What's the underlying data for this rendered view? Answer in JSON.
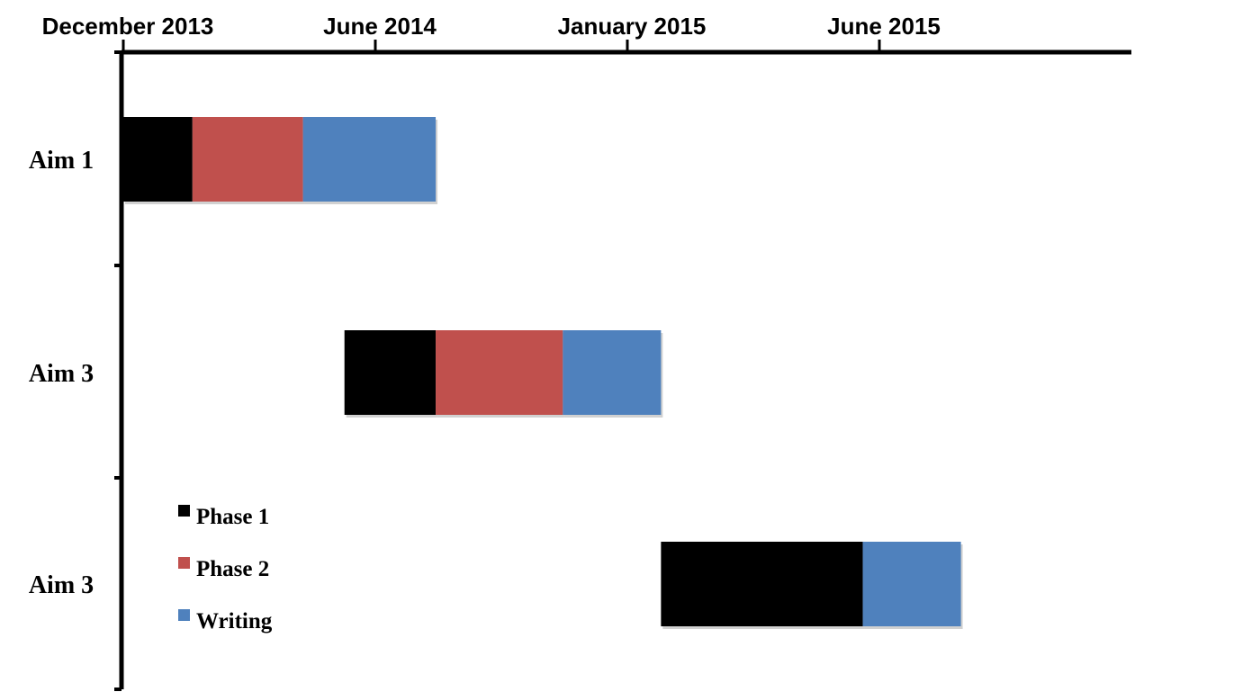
{
  "chart_data": {
    "type": "gantt",
    "title": "",
    "time_axis": {
      "position": "top",
      "ticks": [
        {
          "date": "2013-12",
          "label": "December 2013"
        },
        {
          "date": "2014-06",
          "label": "June 2014"
        },
        {
          "date": "2015-01",
          "label": "January 2015"
        },
        {
          "date": "2015-06",
          "label": "June 2015"
        }
      ]
    },
    "rows": [
      "Aim 1",
      "Aim 3",
      "Aim 3"
    ],
    "series": [
      {
        "name": "Phase 1",
        "color": "#000000"
      },
      {
        "name": "Phase 2",
        "color": "#c0504d"
      },
      {
        "name": "Writing",
        "color": "#4f81bd"
      }
    ],
    "tasks": [
      {
        "row": 0,
        "series": "Phase 1",
        "start": "2013-12-01",
        "end": "2014-01-20"
      },
      {
        "row": 0,
        "series": "Phase 2",
        "start": "2014-01-20",
        "end": "2014-04-10"
      },
      {
        "row": 0,
        "series": "Writing",
        "start": "2014-04-10",
        "end": "2014-07-15"
      },
      {
        "row": 1,
        "series": "Phase 1",
        "start": "2014-05-10",
        "end": "2014-07-15"
      },
      {
        "row": 1,
        "series": "Phase 2",
        "start": "2014-07-15",
        "end": "2014-10-15"
      },
      {
        "row": 1,
        "series": "Writing",
        "start": "2014-10-15",
        "end": "2014-12-25"
      },
      {
        "row": 2,
        "series": "Phase 1",
        "start": "2014-12-25",
        "end": "2015-05-20"
      },
      {
        "row": 2,
        "series": "Writing",
        "start": "2015-05-20",
        "end": "2015-07-30"
      }
    ],
    "legend": {
      "position": "bottom-left",
      "items": [
        "Phase 1",
        "Phase 2",
        "Writing"
      ]
    },
    "grid": false
  }
}
